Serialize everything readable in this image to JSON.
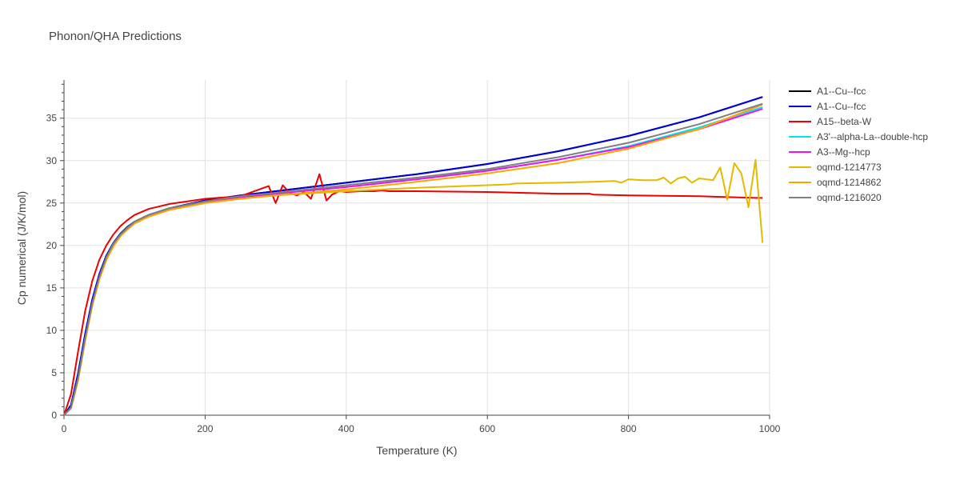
{
  "chart_data": {
    "type": "line",
    "title": "Phonon/QHA Predictions",
    "xlabel": "Temperature (K)",
    "ylabel": "Cp numerical (J/K/mol)",
    "xlim": [
      0,
      1000
    ],
    "ylim": [
      0,
      39.5
    ],
    "xticks": [
      0,
      200,
      400,
      600,
      800,
      1000
    ],
    "yticks": [
      0,
      5,
      10,
      15,
      20,
      25,
      30,
      35
    ],
    "grid": true,
    "legend_position": "right",
    "series": [
      {
        "name": "A1--Cu--fcc",
        "color": "#000000",
        "x": [
          0,
          10,
          20,
          30,
          40,
          50,
          60,
          70,
          80,
          90,
          100,
          120,
          150,
          200,
          250,
          300,
          400,
          500,
          600,
          700,
          800,
          900,
          990
        ],
        "values": [
          0,
          1.2,
          4.9,
          9.6,
          13.6,
          16.6,
          18.8,
          20.3,
          21.4,
          22.2,
          22.8,
          23.6,
          24.4,
          25.3,
          25.9,
          26.4,
          27.4,
          28.4,
          29.6,
          31.1,
          32.9,
          35.1,
          37.5
        ]
      },
      {
        "name": "A1--Cu--fcc",
        "color": "#0000dd",
        "x": [
          0,
          10,
          20,
          30,
          40,
          50,
          60,
          70,
          80,
          90,
          100,
          120,
          150,
          200,
          250,
          300,
          400,
          500,
          600,
          700,
          800,
          900,
          990
        ],
        "values": [
          0,
          1.2,
          4.9,
          9.6,
          13.6,
          16.6,
          18.8,
          20.3,
          21.4,
          22.2,
          22.8,
          23.6,
          24.4,
          25.3,
          25.9,
          26.4,
          27.4,
          28.4,
          29.6,
          31.1,
          32.9,
          35.1,
          37.5
        ]
      },
      {
        "name": "A15--beta-W",
        "color": "#ee0000",
        "x": [
          0,
          10,
          20,
          30,
          40,
          50,
          60,
          70,
          80,
          90,
          100,
          120,
          150,
          200,
          250,
          290,
          300,
          310,
          320,
          330,
          340,
          350,
          362,
          372,
          380,
          390,
          400,
          420,
          440,
          450,
          460,
          500,
          600,
          700,
          745,
          750,
          800,
          900,
          980,
          990
        ],
        "values": [
          0,
          2.5,
          7.5,
          12.3,
          15.8,
          18.3,
          20.0,
          21.3,
          22.3,
          23.0,
          23.6,
          24.3,
          24.9,
          25.5,
          25.8,
          27.0,
          25.0,
          27.1,
          26.2,
          25.9,
          26.3,
          25.5,
          28.4,
          25.3,
          26.0,
          26.4,
          26.3,
          26.4,
          26.4,
          26.5,
          26.4,
          26.4,
          26.3,
          26.1,
          26.1,
          26.0,
          25.9,
          25.8,
          25.6,
          25.6
        ]
      },
      {
        "name": "A3'--alpha-La--double-hcp",
        "color": "#00e5ee",
        "x": [
          0,
          10,
          20,
          30,
          40,
          50,
          60,
          70,
          80,
          90,
          100,
          120,
          150,
          200,
          250,
          300,
          400,
          500,
          600,
          700,
          800,
          900,
          990
        ],
        "values": [
          0,
          0.9,
          4.3,
          9.0,
          13.1,
          16.2,
          18.5,
          20.1,
          21.3,
          22.1,
          22.7,
          23.5,
          24.3,
          25.1,
          25.7,
          26.1,
          26.9,
          27.8,
          28.8,
          30.1,
          31.7,
          33.9,
          36.3
        ]
      },
      {
        "name": "A3--Mg--hcp",
        "color": "#ee11ee",
        "x": [
          0,
          10,
          20,
          30,
          40,
          50,
          60,
          70,
          80,
          90,
          100,
          120,
          150,
          200,
          250,
          300,
          400,
          500,
          600,
          700,
          800,
          900,
          990
        ],
        "values": [
          0,
          0.9,
          4.3,
          9.0,
          13.1,
          16.2,
          18.5,
          20.1,
          21.3,
          22.1,
          22.7,
          23.5,
          24.3,
          25.1,
          25.7,
          26.1,
          26.9,
          27.8,
          28.8,
          30.1,
          31.6,
          33.7,
          36.1
        ]
      },
      {
        "name": "oqmd-1214773",
        "color": "#e6b800",
        "x": [
          0,
          10,
          20,
          30,
          40,
          50,
          60,
          70,
          80,
          90,
          100,
          120,
          150,
          200,
          250,
          300,
          400,
          500,
          600,
          630,
          640,
          700,
          750,
          780,
          790,
          800,
          820,
          840,
          850,
          860,
          870,
          880,
          890,
          900,
          920,
          930,
          940,
          950,
          960,
          970,
          980,
          990
        ],
        "values": [
          0,
          0.8,
          4.1,
          8.8,
          12.9,
          16.0,
          18.3,
          19.9,
          21.1,
          21.9,
          22.6,
          23.4,
          24.2,
          25.0,
          25.5,
          25.9,
          26.4,
          26.8,
          27.1,
          27.2,
          27.3,
          27.4,
          27.5,
          27.6,
          27.4,
          27.8,
          27.7,
          27.7,
          28.0,
          27.3,
          27.9,
          28.1,
          27.4,
          27.9,
          27.7,
          29.2,
          25.4,
          29.7,
          28.5,
          24.5,
          30.1,
          20.3
        ]
      },
      {
        "name": "oqmd-1214862",
        "color": "#ffa500",
        "x": [
          0,
          10,
          20,
          30,
          40,
          50,
          60,
          70,
          80,
          90,
          100,
          120,
          150,
          200,
          250,
          300,
          400,
          500,
          600,
          700,
          800,
          900,
          990
        ],
        "values": [
          0,
          0.8,
          4.1,
          8.8,
          12.9,
          16.0,
          18.3,
          19.9,
          21.1,
          21.9,
          22.6,
          23.4,
          24.2,
          25.0,
          25.5,
          25.9,
          26.6,
          27.5,
          28.5,
          29.7,
          31.4,
          33.7,
          36.6
        ]
      },
      {
        "name": "oqmd-1216020",
        "color": "#808080",
        "x": [
          0,
          10,
          20,
          30,
          40,
          50,
          60,
          70,
          80,
          90,
          100,
          120,
          150,
          200,
          250,
          300,
          400,
          500,
          600,
          700,
          800,
          900,
          990
        ],
        "values": [
          0,
          0.9,
          4.4,
          9.1,
          13.2,
          16.3,
          18.6,
          20.2,
          21.3,
          22.1,
          22.8,
          23.6,
          24.4,
          25.2,
          25.8,
          26.2,
          27.1,
          28.0,
          29.0,
          30.4,
          32.1,
          34.3,
          36.7
        ]
      }
    ]
  }
}
